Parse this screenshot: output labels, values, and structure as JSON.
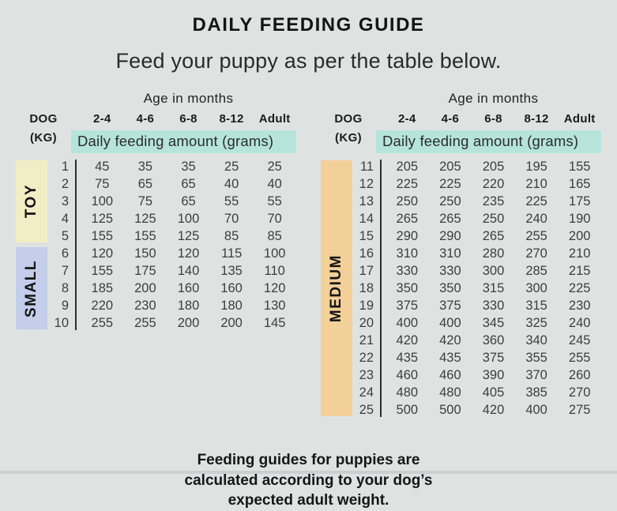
{
  "title": "DAILY FEEDING GUIDE",
  "subtitle": "Feed your puppy as per the table below.",
  "headers": {
    "age": "Age in months",
    "dog": "DOG",
    "kg": "(KG)",
    "columns": [
      "2-4",
      "4-6",
      "6-8",
      "8-12",
      "Adult"
    ],
    "amount": "Daily feeding amount (grams)"
  },
  "footnote": "Feeding guides for puppies are calculated according to your dog’s expected adult weight.",
  "colors": {
    "background": "#dee3e2",
    "highlight_teal": "#b6e4da",
    "band_toy": "#f1eec5",
    "band_small": "#c4cde9",
    "band_medium": "#f4d099",
    "divider": "#2e2e2e",
    "text": "#1b1b1b"
  },
  "chart_data": [
    {
      "type": "table",
      "title": "Age in months",
      "row_header": "DOG (KG)",
      "columns": [
        "2-4",
        "4-6",
        "6-8",
        "8-12",
        "Adult"
      ],
      "units": "Daily feeding amount (grams)",
      "groups": [
        {
          "label": "TOY",
          "color": "#f1eec5",
          "rows": [
            {
              "kg": 1,
              "grams": [
                45,
                35,
                35,
                25,
                25
              ]
            },
            {
              "kg": 2,
              "grams": [
                75,
                65,
                65,
                40,
                40
              ]
            },
            {
              "kg": 3,
              "grams": [
                100,
                75,
                65,
                55,
                55
              ]
            },
            {
              "kg": 4,
              "grams": [
                125,
                125,
                100,
                70,
                70
              ]
            },
            {
              "kg": 5,
              "grams": [
                155,
                155,
                125,
                85,
                85
              ]
            }
          ]
        },
        {
          "label": "SMALL",
          "color": "#c4cde9",
          "rows": [
            {
              "kg": 6,
              "grams": [
                120,
                150,
                120,
                115,
                100
              ]
            },
            {
              "kg": 7,
              "grams": [
                155,
                175,
                140,
                135,
                110
              ]
            },
            {
              "kg": 8,
              "grams": [
                185,
                200,
                160,
                160,
                120
              ]
            },
            {
              "kg": 9,
              "grams": [
                220,
                230,
                180,
                180,
                130
              ]
            },
            {
              "kg": 10,
              "grams": [
                255,
                255,
                200,
                200,
                145
              ]
            }
          ]
        }
      ]
    },
    {
      "type": "table",
      "title": "Age in months",
      "row_header": "DOG (KG)",
      "columns": [
        "2-4",
        "4-6",
        "6-8",
        "8-12",
        "Adult"
      ],
      "units": "Daily feeding amount (grams)",
      "groups": [
        {
          "label": "MEDIUM",
          "color": "#f4d099",
          "rows": [
            {
              "kg": 11,
              "grams": [
                205,
                205,
                205,
                195,
                155
              ]
            },
            {
              "kg": 12,
              "grams": [
                225,
                225,
                220,
                210,
                165
              ]
            },
            {
              "kg": 13,
              "grams": [
                250,
                250,
                235,
                225,
                175
              ]
            },
            {
              "kg": 14,
              "grams": [
                265,
                265,
                250,
                240,
                190
              ]
            },
            {
              "kg": 15,
              "grams": [
                290,
                290,
                265,
                255,
                200
              ]
            },
            {
              "kg": 16,
              "grams": [
                310,
                310,
                280,
                270,
                210
              ]
            },
            {
              "kg": 17,
              "grams": [
                330,
                330,
                300,
                285,
                215
              ]
            },
            {
              "kg": 18,
              "grams": [
                350,
                350,
                315,
                300,
                225
              ]
            },
            {
              "kg": 19,
              "grams": [
                375,
                375,
                330,
                315,
                230
              ]
            },
            {
              "kg": 20,
              "grams": [
                400,
                400,
                345,
                325,
                240
              ]
            },
            {
              "kg": 21,
              "grams": [
                420,
                420,
                360,
                340,
                245
              ]
            },
            {
              "kg": 22,
              "grams": [
                435,
                435,
                375,
                355,
                255
              ]
            },
            {
              "kg": 23,
              "grams": [
                460,
                460,
                390,
                370,
                260
              ]
            },
            {
              "kg": 24,
              "grams": [
                480,
                480,
                405,
                385,
                270
              ]
            },
            {
              "kg": 25,
              "grams": [
                500,
                500,
                420,
                400,
                275
              ]
            }
          ]
        }
      ]
    }
  ]
}
